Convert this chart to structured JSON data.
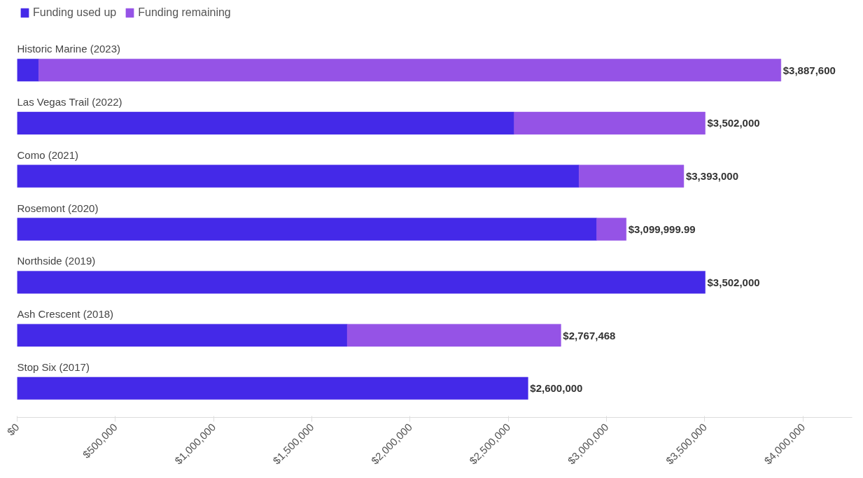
{
  "chart_data": {
    "type": "bar",
    "orientation": "horizontal",
    "stacked": true,
    "categories": [
      "Historic Marine (2023)",
      "Las Vegas Trail (2022)",
      "Como (2021)",
      "Rosemont (2020)",
      "Northside (2019)",
      "Ash Crescent (2018)",
      "Stop Six (2017)"
    ],
    "series": [
      {
        "name": "Funding used up",
        "color": "#4429e8",
        "values": [
          110000,
          2530000,
          2860000,
          2950000,
          3502000,
          1680000,
          2600000
        ]
      },
      {
        "name": "Funding remaining",
        "color": "#9553e6",
        "values": [
          3777600,
          972000,
          533000,
          149999.99,
          null,
          1087468,
          null
        ]
      }
    ],
    "totals": [
      "$3,887,600",
      "$3,502,000",
      "$3,393,000",
      "$3,099,999.99",
      "$3,502,000",
      "$2,767,468",
      "$2,600,000"
    ],
    "xlim": [
      0,
      4250000
    ],
    "xticks": [
      {
        "value": 0,
        "label": "$0"
      },
      {
        "value": 500000,
        "label": "$500,000"
      },
      {
        "value": 1000000,
        "label": "$1,000,000"
      },
      {
        "value": 1500000,
        "label": "$1,500,000"
      },
      {
        "value": 2000000,
        "label": "$2,000,000"
      },
      {
        "value": 2500000,
        "label": "$2,500,000"
      },
      {
        "value": 3000000,
        "label": "$3,000,000"
      },
      {
        "value": 3500000,
        "label": "$3,500,000"
      },
      {
        "value": 4000000,
        "label": "$4,000,000"
      }
    ],
    "tick_labels": "x",
    "grid": false,
    "legend": "top left"
  }
}
